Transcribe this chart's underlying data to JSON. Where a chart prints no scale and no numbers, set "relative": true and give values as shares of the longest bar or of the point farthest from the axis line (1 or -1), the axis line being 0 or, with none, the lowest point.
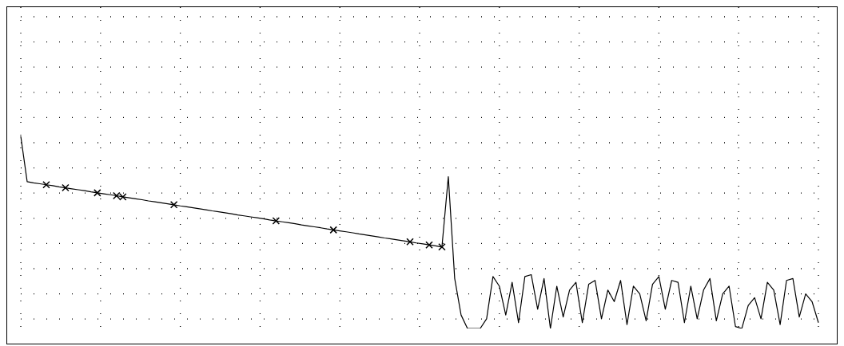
{
  "chart_data": {
    "type": "line",
    "relative": true,
    "grid": true,
    "categories": [
      null,
      null,
      null,
      null,
      null,
      null,
      null,
      null,
      null,
      null,
      null,
      null,
      null,
      null,
      null,
      null,
      null,
      null,
      null,
      null,
      null,
      null,
      null,
      null,
      null,
      null,
      null,
      null,
      null,
      null,
      null,
      null,
      null,
      null,
      null,
      null,
      null,
      null,
      null,
      null,
      null,
      null,
      null,
      null,
      null,
      null,
      null,
      null,
      null,
      null,
      null,
      null,
      null,
      null,
      null,
      null,
      null,
      null,
      null,
      null,
      null,
      null,
      null,
      null,
      null,
      null,
      null,
      null,
      null,
      null,
      null,
      null,
      null,
      null,
      null,
      null,
      null,
      null,
      null,
      null,
      null,
      null,
      null,
      null,
      null,
      null,
      null,
      null,
      null,
      null,
      null,
      null,
      null,
      null,
      null,
      null,
      null,
      null,
      null,
      null,
      null,
      null,
      null,
      null,
      null,
      null,
      null,
      null,
      null,
      null,
      null,
      null,
      null,
      null,
      null,
      null,
      null,
      null,
      null,
      null,
      null,
      null,
      null,
      null,
      null,
      null
    ],
    "series": [
      {
        "color": "#000000",
        "marker": "none",
        "line_style": "solid",
        "values": [
          1.0,
          0.764,
          0.758,
          0.753,
          0.748,
          0.743,
          0.737,
          0.732,
          0.727,
          0.722,
          0.717,
          0.711,
          0.706,
          0.701,
          0.696,
          0.691,
          0.685,
          0.68,
          0.675,
          0.67,
          0.664,
          0.659,
          0.654,
          0.649,
          0.644,
          0.638,
          0.633,
          0.628,
          0.623,
          0.618,
          0.612,
          0.607,
          0.602,
          0.597,
          0.591,
          0.586,
          0.581,
          0.576,
          0.571,
          0.565,
          0.56,
          0.555,
          0.55,
          0.545,
          0.539,
          0.534,
          0.529,
          0.524,
          0.518,
          0.513,
          0.508,
          0.503,
          0.498,
          0.492,
          0.487,
          0.482,
          0.477,
          0.471,
          0.466,
          0.461,
          0.456,
          0.451,
          0.445,
          0.44,
          0.435,
          0.43,
          0.424,
          0.79,
          0.26,
          0.07,
          0,
          0,
          0,
          0.05,
          0.27,
          0.22,
          0.07,
          0.24,
          0.03,
          0.27,
          0.28,
          0.1,
          0.26,
          0,
          0.22,
          0.06,
          0.2,
          0.24,
          0.03,
          0.23,
          0.25,
          0.05,
          0.2,
          0.14,
          0.25,
          0.02,
          0.22,
          0.18,
          0.04,
          0.23,
          0.27,
          0.1,
          0.25,
          0.24,
          0.03,
          0.22,
          0.05,
          0.2,
          0.26,
          0.04,
          0.18,
          0.22,
          0.01,
          0,
          0.12,
          0.16,
          0.05,
          0.24,
          0.2,
          0.02,
          0.25,
          0.26,
          0.06,
          0.18,
          0.14,
          0.03
        ]
      }
    ]
  }
}
